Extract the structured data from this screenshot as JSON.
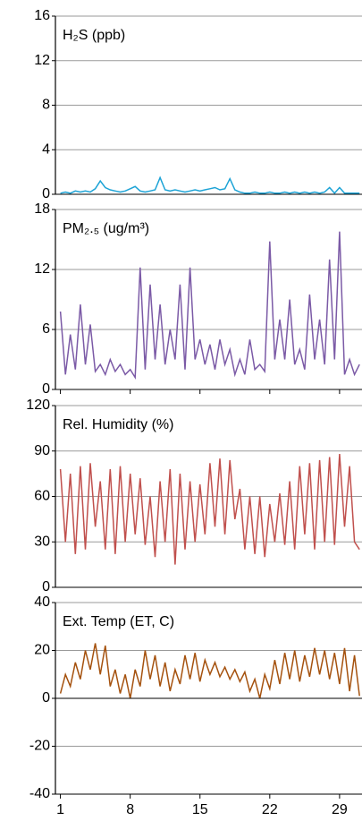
{
  "chart_data": [
    {
      "type": "line",
      "title": "H₂S (ppb)",
      "color": "#1ca3d6",
      "x": [
        1,
        1.5,
        2,
        2.5,
        3,
        3.5,
        4,
        4.5,
        5,
        5.5,
        6,
        6.5,
        7,
        7.5,
        8,
        8.5,
        9,
        9.5,
        10,
        10.5,
        11,
        11.5,
        12,
        12.5,
        13,
        13.5,
        14,
        14.5,
        15,
        15.5,
        16,
        16.5,
        17,
        17.5,
        18,
        18.5,
        19,
        19.5,
        20,
        20.5,
        21,
        21.5,
        22,
        22.5,
        23,
        23.5,
        24,
        24.5,
        25,
        25.5,
        26,
        26.5,
        27,
        27.5,
        28,
        28.5,
        29,
        29.5,
        30,
        30.5,
        31
      ],
      "values": [
        0.1,
        0.2,
        0.1,
        0.3,
        0.2,
        0.3,
        0.2,
        0.5,
        1.2,
        0.6,
        0.4,
        0.3,
        0.2,
        0.3,
        0.5,
        0.7,
        0.3,
        0.2,
        0.3,
        0.4,
        1.5,
        0.4,
        0.3,
        0.4,
        0.3,
        0.2,
        0.3,
        0.4,
        0.3,
        0.4,
        0.5,
        0.6,
        0.4,
        0.5,
        1.4,
        0.4,
        0.2,
        0.1,
        0.1,
        0.2,
        0.1,
        0.1,
        0.2,
        0.1,
        0.1,
        0.2,
        0.1,
        0.2,
        0.1,
        0.2,
        0.1,
        0.2,
        0.1,
        0.2,
        0.6,
        0.1,
        0.6,
        0.1,
        0.1,
        0.1,
        0.1
      ],
      "xlim": [
        0.5,
        31.25
      ],
      "ylim": [
        0,
        16
      ],
      "yticks": [
        0,
        4,
        8,
        12,
        16
      ],
      "grid": true
    },
    {
      "type": "line",
      "title": "PM₂.₅ (ug/m³)",
      "color": "#7b5aa6",
      "x": [
        1,
        1.5,
        2,
        2.5,
        3,
        3.5,
        4,
        4.5,
        5,
        5.5,
        6,
        6.5,
        7,
        7.5,
        8,
        8.5,
        9,
        9.5,
        10,
        10.5,
        11,
        11.5,
        12,
        12.5,
        13,
        13.5,
        14,
        14.5,
        15,
        15.5,
        16,
        16.5,
        17,
        17.5,
        18,
        18.5,
        19,
        19.5,
        20,
        20.5,
        21,
        21.5,
        22,
        22.5,
        23,
        23.5,
        24,
        24.5,
        25,
        25.5,
        26,
        26.5,
        27,
        27.5,
        28,
        28.5,
        29,
        29.5,
        30,
        30.5,
        31
      ],
      "values": [
        7.8,
        1.5,
        5.5,
        2,
        8.5,
        2.5,
        6.5,
        1.8,
        2.5,
        1.5,
        3,
        1.8,
        2.5,
        1.5,
        2,
        1.2,
        12.2,
        2,
        10.5,
        3,
        8.5,
        2.5,
        6,
        3,
        10.5,
        2,
        12.2,
        3,
        5,
        2.5,
        4.5,
        2,
        5,
        2.5,
        4,
        1.5,
        3,
        1.5,
        5,
        2,
        2.5,
        1.8,
        14.8,
        3,
        7,
        3,
        9,
        2.5,
        4,
        2,
        9.5,
        3,
        7,
        2.5,
        13,
        3,
        15.8,
        1.5,
        3,
        1.5,
        2.5
      ],
      "xlim": [
        0.5,
        31.25
      ],
      "ylim": [
        0,
        18
      ],
      "yticks": [
        0,
        6,
        12,
        18
      ],
      "xticks": [
        1,
        8,
        15,
        22,
        29
      ],
      "grid": true
    },
    {
      "type": "line",
      "title": "Rel. Humidity (%)",
      "color": "#c0504d",
      "x": [
        1,
        1.5,
        2,
        2.5,
        3,
        3.5,
        4,
        4.5,
        5,
        5.5,
        6,
        6.5,
        7,
        7.5,
        8,
        8.5,
        9,
        9.5,
        10,
        10.5,
        11,
        11.5,
        12,
        12.5,
        13,
        13.5,
        14,
        14.5,
        15,
        15.5,
        16,
        16.5,
        17,
        17.5,
        18,
        18.5,
        19,
        19.5,
        20,
        20.5,
        21,
        21.5,
        22,
        22.5,
        23,
        23.5,
        24,
        24.5,
        25,
        25.5,
        26,
        26.5,
        27,
        27.5,
        28,
        28.5,
        29,
        29.5,
        30,
        30.5,
        31
      ],
      "values": [
        78,
        30,
        75,
        22,
        80,
        25,
        82,
        40,
        70,
        25,
        78,
        22,
        80,
        30,
        75,
        35,
        72,
        28,
        60,
        20,
        70,
        30,
        78,
        15,
        75,
        25,
        70,
        30,
        68,
        35,
        82,
        40,
        85,
        35,
        84,
        45,
        65,
        25,
        60,
        22,
        60,
        20,
        55,
        30,
        62,
        28,
        70,
        25,
        80,
        35,
        82,
        25,
        84,
        30,
        86,
        28,
        88,
        40,
        80,
        30,
        25
      ],
      "xlim": [
        0.5,
        31.25
      ],
      "ylim": [
        0,
        120
      ],
      "yticks": [
        0,
        30,
        60,
        90,
        120
      ],
      "grid": true
    },
    {
      "type": "line",
      "title": "Ext. Temp (ET, C)",
      "color": "#a5520f",
      "x": [
        1,
        1.5,
        2,
        2.5,
        3,
        3.5,
        4,
        4.5,
        5,
        5.5,
        6,
        6.5,
        7,
        7.5,
        8,
        8.5,
        9,
        9.5,
        10,
        10.5,
        11,
        11.5,
        12,
        12.5,
        13,
        13.5,
        14,
        14.5,
        15,
        15.5,
        16,
        16.5,
        17,
        17.5,
        18,
        18.5,
        19,
        19.5,
        20,
        20.5,
        21,
        21.5,
        22,
        22.5,
        23,
        23.5,
        24,
        24.5,
        25,
        25.5,
        26,
        26.5,
        27,
        27.5,
        28,
        28.5,
        29,
        29.5,
        30,
        30.5,
        31
      ],
      "values": [
        2,
        10,
        5,
        15,
        8,
        20,
        12,
        23,
        10,
        22,
        5,
        12,
        2,
        10,
        0,
        12,
        5,
        20,
        8,
        18,
        5,
        15,
        3,
        12,
        6,
        18,
        8,
        19,
        7,
        16,
        10,
        15,
        9,
        13,
        8,
        12,
        7,
        11,
        3,
        8,
        0,
        10,
        4,
        16,
        6,
        19,
        8,
        20,
        7,
        18,
        9,
        21,
        10,
        20,
        8,
        19,
        6,
        21,
        3,
        18,
        1
      ],
      "xlim": [
        0.5,
        31.25
      ],
      "ylim": [
        -40,
        40
      ],
      "yticks": [
        -40,
        -20,
        0,
        20,
        40
      ],
      "xticks": [
        1,
        8,
        15,
        22,
        29
      ],
      "grid": true
    }
  ]
}
